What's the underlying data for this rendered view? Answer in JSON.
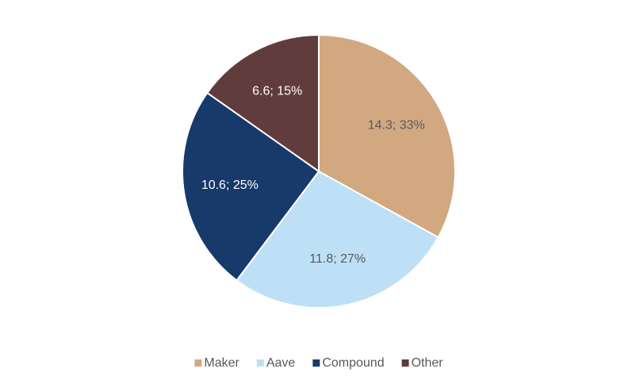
{
  "chart_data": {
    "type": "pie",
    "categories": [
      "Maker",
      "Aave",
      "Compound",
      "Other"
    ],
    "values": [
      14.3,
      11.8,
      10.6,
      6.6
    ],
    "value_labels": [
      "14.3; 33%",
      "11.8; 27%",
      "10.6; 25%",
      "6.6; 15%"
    ],
    "colors": [
      "#d2a880",
      "#bde0f6",
      "#173a6b",
      "#613c3c"
    ],
    "label_colors": [
      "#595959",
      "#595959",
      "#ffffff",
      "#ffffff"
    ],
    "legend": "bottom"
  }
}
